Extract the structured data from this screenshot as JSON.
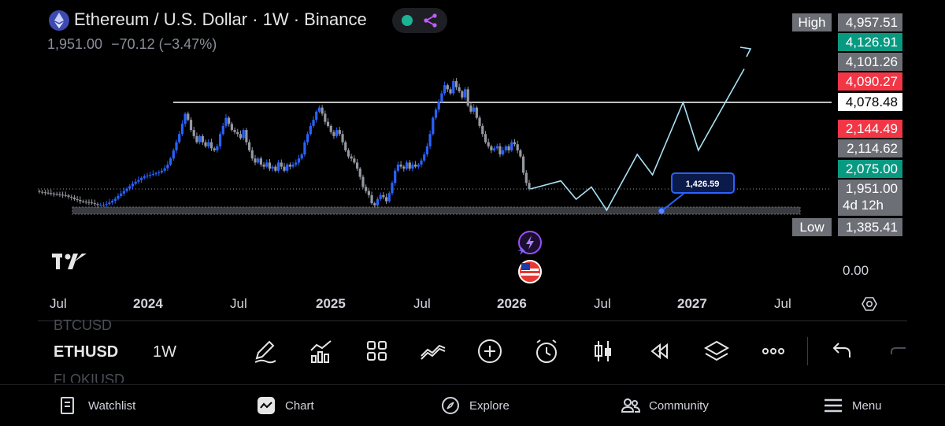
{
  "header": {
    "title": "Ethereum / U.S. Dollar · 1W · Binance",
    "price": "1,951.00",
    "change": "−70.12 (−3.47%)"
  },
  "price_scale": {
    "high_tag": "High",
    "high": "4,957.51",
    "p1": "4,126.91",
    "p2": "4,101.26",
    "p3": "4,090.27",
    "resistance": "4,078.48",
    "p4": "2,144.49",
    "p5": "2,114.62",
    "p6": "2,075.00",
    "last": "1,951.00",
    "countdown": "4d 12h",
    "low_tag": "Low",
    "low": "1,385.41",
    "zero": "0.00"
  },
  "time_axis": {
    "labels": [
      "Jul",
      "2024",
      "Jul",
      "2025",
      "Jul",
      "2026",
      "Jul",
      "2027",
      "Jul"
    ]
  },
  "annotation": {
    "callout": "1,426.59"
  },
  "toolbar": {
    "symbol_prev": "BTCUSD",
    "symbol": "ETHUSD",
    "symbol_next": "FLOKIUSD",
    "interval": "1W"
  },
  "nav": {
    "watchlist": "Watchlist",
    "chart": "Chart",
    "explore": "Explore",
    "community": "Community",
    "menu": "Menu"
  },
  "colors": {
    "bull": "#2962ff",
    "bear": "#9598a1",
    "teal": "#089981",
    "red": "#f23645",
    "projection": "#a9e1f5"
  },
  "chart_data": {
    "type": "candlestick",
    "weekly_closes_approx": [
      1880,
      1870,
      1860,
      1850,
      1840,
      1830,
      1820,
      1810,
      1800,
      1790,
      1760,
      1740,
      1700,
      1680,
      1650,
      1640,
      1630,
      1620,
      1600,
      1580,
      1560,
      1560,
      1560,
      1580,
      1620,
      1660,
      1710,
      1780,
      1840,
      1900,
      1960,
      2020,
      2080,
      2130,
      2170,
      2220,
      2260,
      2280,
      2300,
      2320,
      2340,
      2360,
      2400,
      2460,
      2550,
      2700,
      2900,
      3100,
      3300,
      3550,
      3800,
      3650,
      3400,
      3250,
      3100,
      3250,
      3100,
      3000,
      3100,
      2950,
      2900,
      3000,
      3300,
      3500,
      3700,
      3550,
      3400,
      3350,
      3300,
      3200,
      3400,
      3100,
      2900,
      2700,
      2600,
      2700,
      2550,
      2500,
      2600,
      2450,
      2500,
      2400,
      2600,
      2500,
      2400,
      2550,
      2500,
      2550,
      2600,
      2700,
      2800,
      3100,
      3300,
      3500,
      3650,
      3850,
      3950,
      3800,
      3600,
      3500,
      3350,
      3250,
      3400,
      3300,
      3100,
      2900,
      2750,
      2700,
      2600,
      2450,
      2250,
      2000,
      1900,
      1800,
      1600,
      1550,
      1700,
      1800,
      1750,
      1650,
      1850,
      2100,
      2400,
      2550,
      2500,
      2450,
      2600,
      2450,
      2550,
      2500,
      2550,
      2650,
      2800,
      3000,
      3300,
      3700,
      3900,
      4100,
      4300,
      4500,
      4400,
      4300,
      4600,
      4450,
      4350,
      4200,
      4400,
      4000,
      3850,
      3950,
      3700,
      3500,
      3300,
      3100,
      3000,
      2900,
      2950,
      3000,
      2800,
      2900,
      3000,
      2900,
      3100,
      3050,
      2900,
      2750,
      2350,
      2100,
      1951
    ],
    "horizontal_resistance": 4078.48,
    "support_zone": [
      1385.41,
      1500
    ],
    "projection_path": [
      [
        "2026-02",
        1951
      ],
      [
        "2026-04",
        2150
      ],
      [
        "2026-05",
        1700
      ],
      [
        "2026-06",
        2000
      ],
      [
        "2026-07",
        1430
      ],
      [
        "2026-09",
        2800
      ],
      [
        "2026-10",
        2300
      ],
      [
        "2026-12",
        4078
      ],
      [
        "2027-01",
        2900
      ],
      [
        "2027-04",
        4900
      ]
    ],
    "ylim": [
      0,
      4957.51
    ]
  }
}
